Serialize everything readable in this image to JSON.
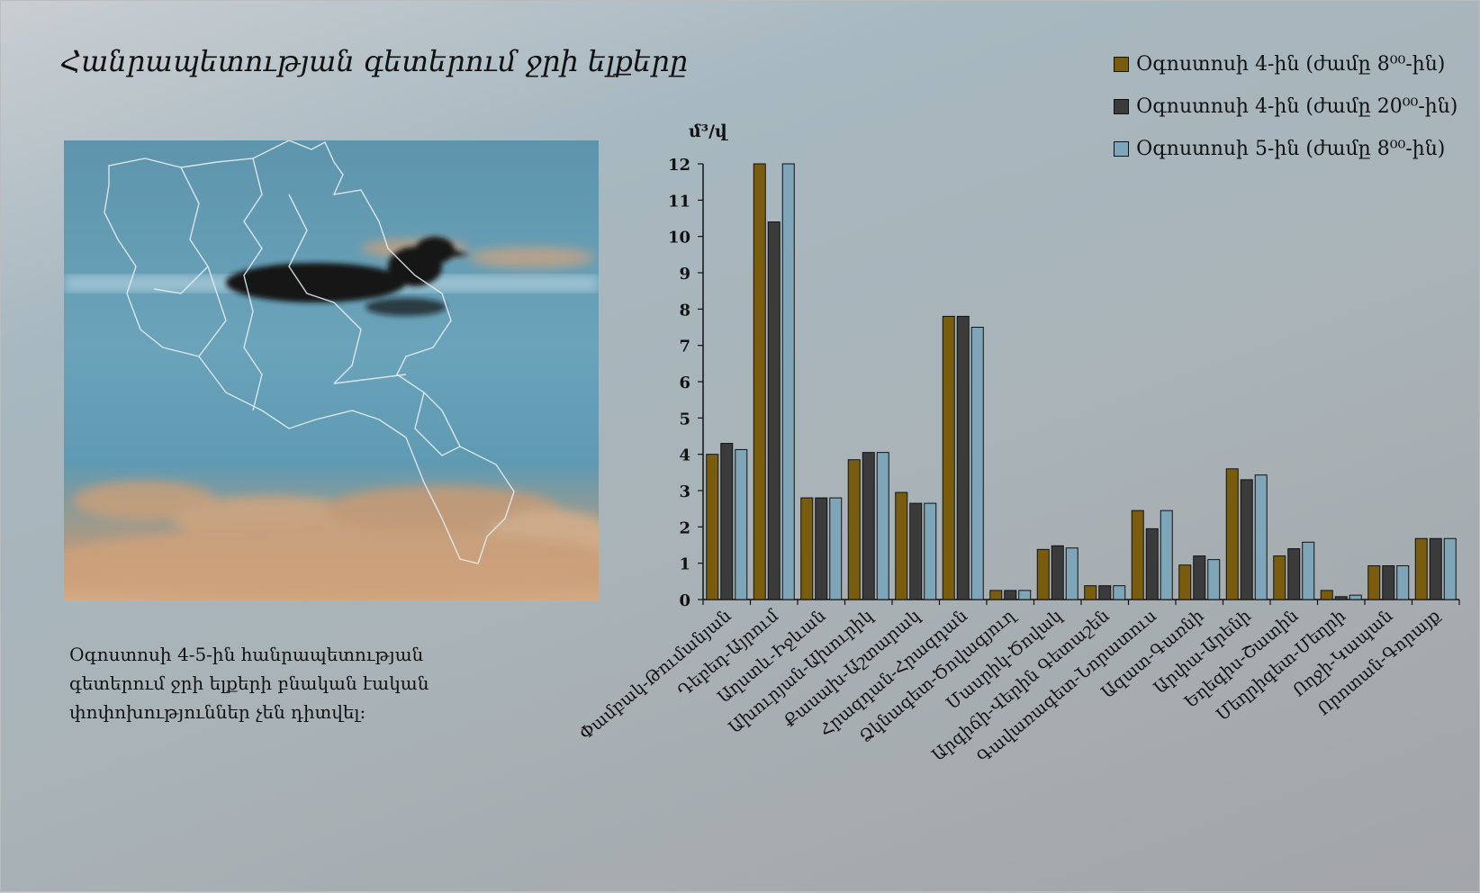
{
  "slide": {
    "title": "Հանրապետության գետերում ջրի ելքերը",
    "caption": "Օգոստոսի 4-5-ին հանրապետության գետերում ջրի ելքերի բնական էական փոփոխություններ չեն դիտվել։",
    "photo": {
      "description_icon": "duck-on-water-with-map-outline-icon"
    }
  },
  "chart_data": {
    "type": "bar",
    "ylabel": "մ³/վ",
    "ylim": [
      0,
      12
    ],
    "yticks": [
      "0",
      "1",
      "2",
      "3",
      "4",
      "5",
      "6",
      "7",
      "8",
      "9",
      "10",
      "11",
      "12"
    ],
    "grid": false,
    "legend_position": "top-right",
    "categories": [
      "Փամբակ-Թումանյան",
      "Դեբեդ-Այրում",
      "Աղստև-Իջևան",
      "Ախուրյան-Ախուրիկ",
      "Քասախ-Աշտարակ",
      "Հրազդան-Հրազդան",
      "Ձկնագետ-Ծովագյուղ",
      "Մասրիկ-Ծովակ",
      "Արգիճի-Վերին Գետաշեն",
      "Գավառագետ-Նորատուս",
      "Ազատ-Գառնի",
      "Արփա-Արենի",
      "Եղեգիս-Շատին",
      "Մեղրիգետ-Մեղրի",
      "Ողջի-Կապան",
      "Որոտան-Գորայք"
    ],
    "series": [
      {
        "name": "Օգոստոսի 4-ին (ժամը 8⁰⁰-ին)",
        "color": "#7a5c0e",
        "values": [
          4.0,
          12.0,
          2.8,
          3.85,
          2.95,
          7.8,
          0.25,
          1.38,
          0.38,
          2.45,
          0.95,
          3.6,
          1.2,
          0.25,
          0.93,
          1.68
        ]
      },
      {
        "name": "Օգոստոսի 4-ին (ժամը 20⁰⁰-ին)",
        "color": "#3b3b3b",
        "values": [
          4.3,
          10.4,
          2.8,
          4.05,
          2.65,
          7.8,
          0.25,
          1.48,
          0.38,
          1.95,
          1.2,
          3.3,
          1.4,
          0.08,
          0.93,
          1.68
        ]
      },
      {
        "name": "Օգոստոսի 5-ին (ժամը 8⁰⁰-ին)",
        "color": "#7fa6b8",
        "values": [
          4.13,
          12.0,
          2.8,
          4.05,
          2.65,
          7.5,
          0.25,
          1.42,
          0.38,
          2.45,
          1.1,
          3.43,
          1.58,
          0.12,
          0.93,
          1.68
        ]
      }
    ]
  }
}
